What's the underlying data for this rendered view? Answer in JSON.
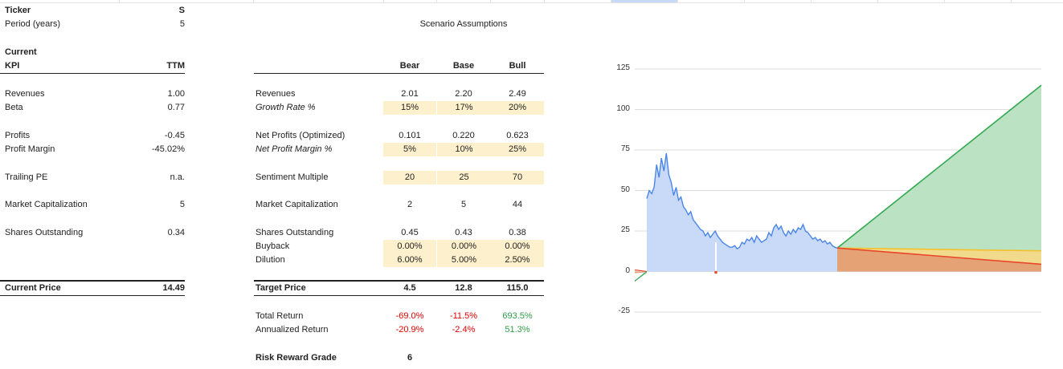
{
  "sheet": {
    "ticker_label": "Ticker",
    "ticker_value": "S",
    "period_label": "Period (years)",
    "period_value": "5",
    "scenario_title": "Scenario Assumptions",
    "current_label": "Current",
    "kpi_header": "KPI",
    "ttm_header": "TTM",
    "bear_header": "Bear",
    "base_header": "Base",
    "bull_header": "Bull",
    "left_rows": [
      {
        "label": "Revenues",
        "value": "1.00"
      },
      {
        "label": "Beta",
        "value": "0.77"
      },
      {
        "label": "Profits",
        "value": "-0.45"
      },
      {
        "label": "Profit Margin",
        "value": "-45.02%"
      },
      {
        "label": "Trailing PE",
        "value": "n.a."
      },
      {
        "label": "Market Capitalization",
        "value": "5"
      },
      {
        "label": "Shares Outstanding",
        "value": "0.34"
      }
    ],
    "scenario_rows": [
      {
        "label": "Revenues",
        "bear": "2.01",
        "base": "2.20",
        "bull": "2.49"
      },
      {
        "label": "Growth Rate %",
        "bear": "15%",
        "base": "17%",
        "bull": "20%"
      },
      {
        "label": "Net Profits (Optimized)",
        "bear": "0.101",
        "base": "0.220",
        "bull": "0.623"
      },
      {
        "label": "Net Profit Margin %",
        "bear": "5%",
        "base": "10%",
        "bull": "25%"
      },
      {
        "label": "Sentiment Multiple",
        "bear": "20",
        "base": "25",
        "bull": "70"
      },
      {
        "label": "Market Capitalization",
        "bear": "2",
        "base": "5",
        "bull": "44"
      },
      {
        "label": "Shares Outstanding",
        "bear": "0.45",
        "base": "0.43",
        "bull": "0.38"
      },
      {
        "label": "Buyback",
        "bear": "0.00%",
        "base": "0.00%",
        "bull": "0.00%"
      },
      {
        "label": "Dilution",
        "bear": "6.00%",
        "base": "5.00%",
        "bull": "2.50%"
      }
    ],
    "current_price_label": "Current Price",
    "current_price_value": "14.49",
    "target_price_label": "Target Price",
    "target_bear": "4.5",
    "target_base": "12.8",
    "target_bull": "115.0",
    "total_return_label": "Total Return",
    "total_return_bear": "-69.0%",
    "total_return_base": "-11.5%",
    "total_return_bull": "693.5%",
    "annualized_return_label": "Annualized Return",
    "annualized_return_bear": "-20.9%",
    "annualized_return_base": "-2.4%",
    "annualized_return_bull": "51.3%",
    "risk_reward_label": "Risk Reward Grade",
    "risk_reward_value": "6"
  },
  "colors": {
    "highlight": "#fdf0cc",
    "negative": "#e00000",
    "positive": "#2e9e48",
    "history_line": "#4a86e8",
    "history_fill": "#c9daf8",
    "bull_line": "#34a853",
    "bull_fill": "#b7e1c0",
    "base_line": "#f2c12e",
    "base_fill": "#f4d98a",
    "bear_line": "#e8452a",
    "bear_fill": "#e4a074"
  },
  "chart_data": {
    "type": "area",
    "ylim": [
      -25,
      125
    ],
    "yticks": [
      "125",
      "100",
      "75",
      "50",
      "25",
      "0",
      "-25"
    ],
    "grid": true,
    "series": [
      {
        "values": [
          45,
          50,
          48,
          52,
          66,
          58,
          70,
          62,
          73,
          60,
          55,
          47,
          52,
          44,
          46,
          40,
          38,
          35,
          37,
          32,
          30,
          28,
          26,
          25,
          22,
          24,
          21,
          23,
          25,
          22,
          20,
          18,
          17,
          16,
          15,
          15,
          16,
          14,
          15,
          18,
          17,
          20,
          19,
          21,
          18,
          22,
          20,
          18,
          19,
          20,
          24,
          22,
          27,
          29,
          26,
          28,
          24,
          22,
          25,
          23,
          26,
          24,
          27,
          26,
          29,
          25,
          24,
          22,
          20,
          21,
          19,
          20,
          18,
          19,
          17,
          18,
          16,
          15,
          14.5
        ]
      },
      {
        "values": [
          14.5,
          115.0
        ]
      },
      {
        "values": [
          14.5,
          12.8
        ]
      },
      {
        "values": [
          14.5,
          4.5
        ]
      }
    ]
  }
}
